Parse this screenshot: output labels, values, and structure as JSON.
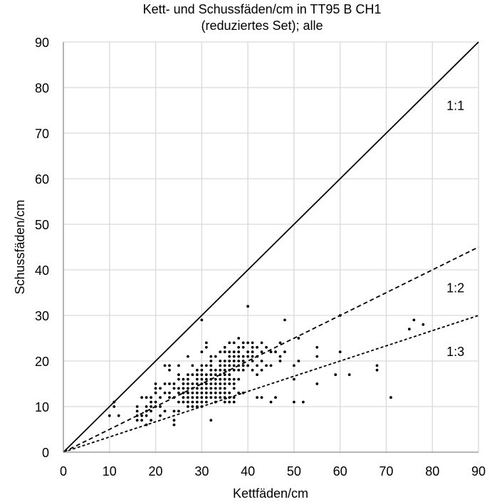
{
  "chart_data": {
    "type": "scatter",
    "title_line1": "Kett- und Schussfäden/cm in TT95 B CH1",
    "title_line2": "(reduziertes Set); alle",
    "xlabel": "Kettfäden/cm",
    "ylabel": "Schussfäden/cm",
    "xlim": [
      0,
      90
    ],
    "ylim": [
      0,
      90
    ],
    "x_ticks": [
      "0",
      "10",
      "20",
      "30",
      "40",
      "50",
      "60",
      "70",
      "80",
      "90"
    ],
    "y_ticks": [
      "0",
      "10",
      "20",
      "30",
      "40",
      "50",
      "60",
      "70",
      "80",
      "90"
    ],
    "grid": true,
    "legend": "none",
    "reference_lines": [
      {
        "label": "1:1",
        "slope": 1,
        "style": "solid",
        "label_at": [
          85,
          76
        ]
      },
      {
        "label": "1:2",
        "slope": 0.5,
        "style": "dashed",
        "label_at": [
          85,
          36
        ]
      },
      {
        "label": "1:3",
        "slope": 0.3333,
        "style": "dashed",
        "label_at": [
          85,
          22
        ]
      }
    ],
    "points": [
      [
        10,
        8
      ],
      [
        11,
        10
      ],
      [
        11,
        11
      ],
      [
        12,
        8
      ],
      [
        16,
        7
      ],
      [
        16,
        8
      ],
      [
        16,
        9
      ],
      [
        16,
        10
      ],
      [
        17,
        7
      ],
      [
        17,
        8
      ],
      [
        17,
        12
      ],
      [
        18,
        6
      ],
      [
        18,
        8
      ],
      [
        18,
        9
      ],
      [
        18,
        10
      ],
      [
        18,
        12
      ],
      [
        19,
        7
      ],
      [
        19,
        9
      ],
      [
        19,
        10
      ],
      [
        19,
        11
      ],
      [
        19,
        12
      ],
      [
        20,
        10
      ],
      [
        20,
        11
      ],
      [
        20,
        13
      ],
      [
        20,
        14
      ],
      [
        20,
        15
      ],
      [
        21,
        8
      ],
      [
        21,
        10
      ],
      [
        21,
        12
      ],
      [
        21,
        14
      ],
      [
        22,
        9
      ],
      [
        22,
        13
      ],
      [
        22,
        15
      ],
      [
        22,
        19
      ],
      [
        23,
        12
      ],
      [
        23,
        13
      ],
      [
        23,
        15
      ],
      [
        23,
        18
      ],
      [
        23,
        19
      ],
      [
        24,
        6
      ],
      [
        24,
        7
      ],
      [
        24,
        9
      ],
      [
        24,
        12
      ],
      [
        24,
        14
      ],
      [
        24,
        15
      ],
      [
        25,
        9
      ],
      [
        25,
        11
      ],
      [
        25,
        13
      ],
      [
        25,
        14
      ],
      [
        25,
        16
      ],
      [
        25,
        17
      ],
      [
        25,
        19
      ],
      [
        26,
        11
      ],
      [
        26,
        12
      ],
      [
        26,
        13
      ],
      [
        26,
        14
      ],
      [
        26,
        15
      ],
      [
        26,
        16
      ],
      [
        27,
        10
      ],
      [
        27,
        11
      ],
      [
        27,
        12
      ],
      [
        27,
        13
      ],
      [
        27,
        14
      ],
      [
        27,
        15
      ],
      [
        27,
        16
      ],
      [
        27,
        17
      ],
      [
        27,
        21
      ],
      [
        28,
        10
      ],
      [
        28,
        11
      ],
      [
        28,
        12
      ],
      [
        28,
        13
      ],
      [
        28,
        14
      ],
      [
        28,
        15
      ],
      [
        28,
        17
      ],
      [
        28,
        19
      ],
      [
        29,
        10
      ],
      [
        29,
        11
      ],
      [
        29,
        12
      ],
      [
        29,
        13
      ],
      [
        29,
        14
      ],
      [
        29,
        15
      ],
      [
        29,
        16
      ],
      [
        29,
        17
      ],
      [
        29,
        18
      ],
      [
        30,
        10
      ],
      [
        30,
        11
      ],
      [
        30,
        12
      ],
      [
        30,
        13
      ],
      [
        30,
        14
      ],
      [
        30,
        15
      ],
      [
        30,
        16
      ],
      [
        30,
        17
      ],
      [
        30,
        18
      ],
      [
        30,
        19
      ],
      [
        30,
        22
      ],
      [
        30,
        29
      ],
      [
        31,
        11
      ],
      [
        31,
        12
      ],
      [
        31,
        13
      ],
      [
        31,
        14
      ],
      [
        31,
        15
      ],
      [
        31,
        16
      ],
      [
        31,
        17
      ],
      [
        31,
        19
      ],
      [
        31,
        23
      ],
      [
        31,
        24
      ],
      [
        32,
        7
      ],
      [
        32,
        12
      ],
      [
        32,
        13
      ],
      [
        32,
        14
      ],
      [
        32,
        15
      ],
      [
        32,
        16
      ],
      [
        32,
        17
      ],
      [
        32,
        18
      ],
      [
        32,
        19
      ],
      [
        32,
        20
      ],
      [
        32,
        21
      ],
      [
        33,
        11
      ],
      [
        33,
        12
      ],
      [
        33,
        13
      ],
      [
        33,
        14
      ],
      [
        33,
        15
      ],
      [
        33,
        16
      ],
      [
        33,
        17
      ],
      [
        33,
        18
      ],
      [
        33,
        21
      ],
      [
        34,
        12
      ],
      [
        34,
        13
      ],
      [
        34,
        14
      ],
      [
        34,
        15
      ],
      [
        34,
        16
      ],
      [
        34,
        17
      ],
      [
        34,
        18
      ],
      [
        34,
        19
      ],
      [
        34,
        20
      ],
      [
        34,
        22
      ],
      [
        35,
        11
      ],
      [
        35,
        12
      ],
      [
        35,
        13
      ],
      [
        35,
        14
      ],
      [
        35,
        15
      ],
      [
        35,
        16
      ],
      [
        35,
        17
      ],
      [
        35,
        18
      ],
      [
        35,
        19
      ],
      [
        35,
        20
      ],
      [
        35,
        22
      ],
      [
        35,
        23
      ],
      [
        36,
        11
      ],
      [
        36,
        12
      ],
      [
        36,
        13
      ],
      [
        36,
        15
      ],
      [
        36,
        16
      ],
      [
        36,
        17
      ],
      [
        36,
        18
      ],
      [
        36,
        19
      ],
      [
        36,
        20
      ],
      [
        36,
        21
      ],
      [
        36,
        22
      ],
      [
        36,
        24
      ],
      [
        37,
        11
      ],
      [
        37,
        12
      ],
      [
        37,
        14
      ],
      [
        37,
        15
      ],
      [
        37,
        16
      ],
      [
        37,
        18
      ],
      [
        37,
        19
      ],
      [
        37,
        20
      ],
      [
        37,
        21
      ],
      [
        37,
        22
      ],
      [
        37,
        24
      ],
      [
        38,
        13
      ],
      [
        38,
        16
      ],
      [
        38,
        18
      ],
      [
        38,
        19
      ],
      [
        38,
        20
      ],
      [
        38,
        21
      ],
      [
        38,
        22
      ],
      [
        38,
        23
      ],
      [
        38,
        25
      ],
      [
        39,
        13
      ],
      [
        39,
        18
      ],
      [
        39,
        19
      ],
      [
        39,
        20
      ],
      [
        39,
        21
      ],
      [
        39,
        23
      ],
      [
        39,
        24
      ],
      [
        40,
        19
      ],
      [
        40,
        21
      ],
      [
        40,
        22
      ],
      [
        40,
        24
      ],
      [
        40,
        32
      ],
      [
        41,
        18
      ],
      [
        41,
        20
      ],
      [
        41,
        21
      ],
      [
        41,
        22
      ],
      [
        41,
        23
      ],
      [
        41,
        24
      ],
      [
        42,
        12
      ],
      [
        42,
        17
      ],
      [
        42,
        19
      ],
      [
        42,
        21
      ],
      [
        42,
        23
      ],
      [
        43,
        12
      ],
      [
        43,
        18
      ],
      [
        43,
        20
      ],
      [
        43,
        22
      ],
      [
        43,
        24
      ],
      [
        44,
        19
      ],
      [
        44,
        23
      ],
      [
        45,
        11
      ],
      [
        45,
        19
      ],
      [
        45,
        22
      ],
      [
        46,
        12
      ],
      [
        46,
        22
      ],
      [
        47,
        20
      ],
      [
        47,
        21
      ],
      [
        47,
        24
      ],
      [
        48,
        22
      ],
      [
        48,
        29
      ],
      [
        50,
        11
      ],
      [
        50,
        16
      ],
      [
        50,
        19
      ],
      [
        51,
        20
      ],
      [
        51,
        25
      ],
      [
        52,
        11
      ],
      [
        55,
        15
      ],
      [
        55,
        21
      ],
      [
        55,
        23
      ],
      [
        59,
        17
      ],
      [
        60,
        22
      ],
      [
        60,
        30
      ],
      [
        62,
        17
      ],
      [
        68,
        18
      ],
      [
        68,
        19
      ],
      [
        71,
        12
      ],
      [
        75,
        27
      ],
      [
        76,
        29
      ],
      [
        78,
        28
      ]
    ]
  }
}
